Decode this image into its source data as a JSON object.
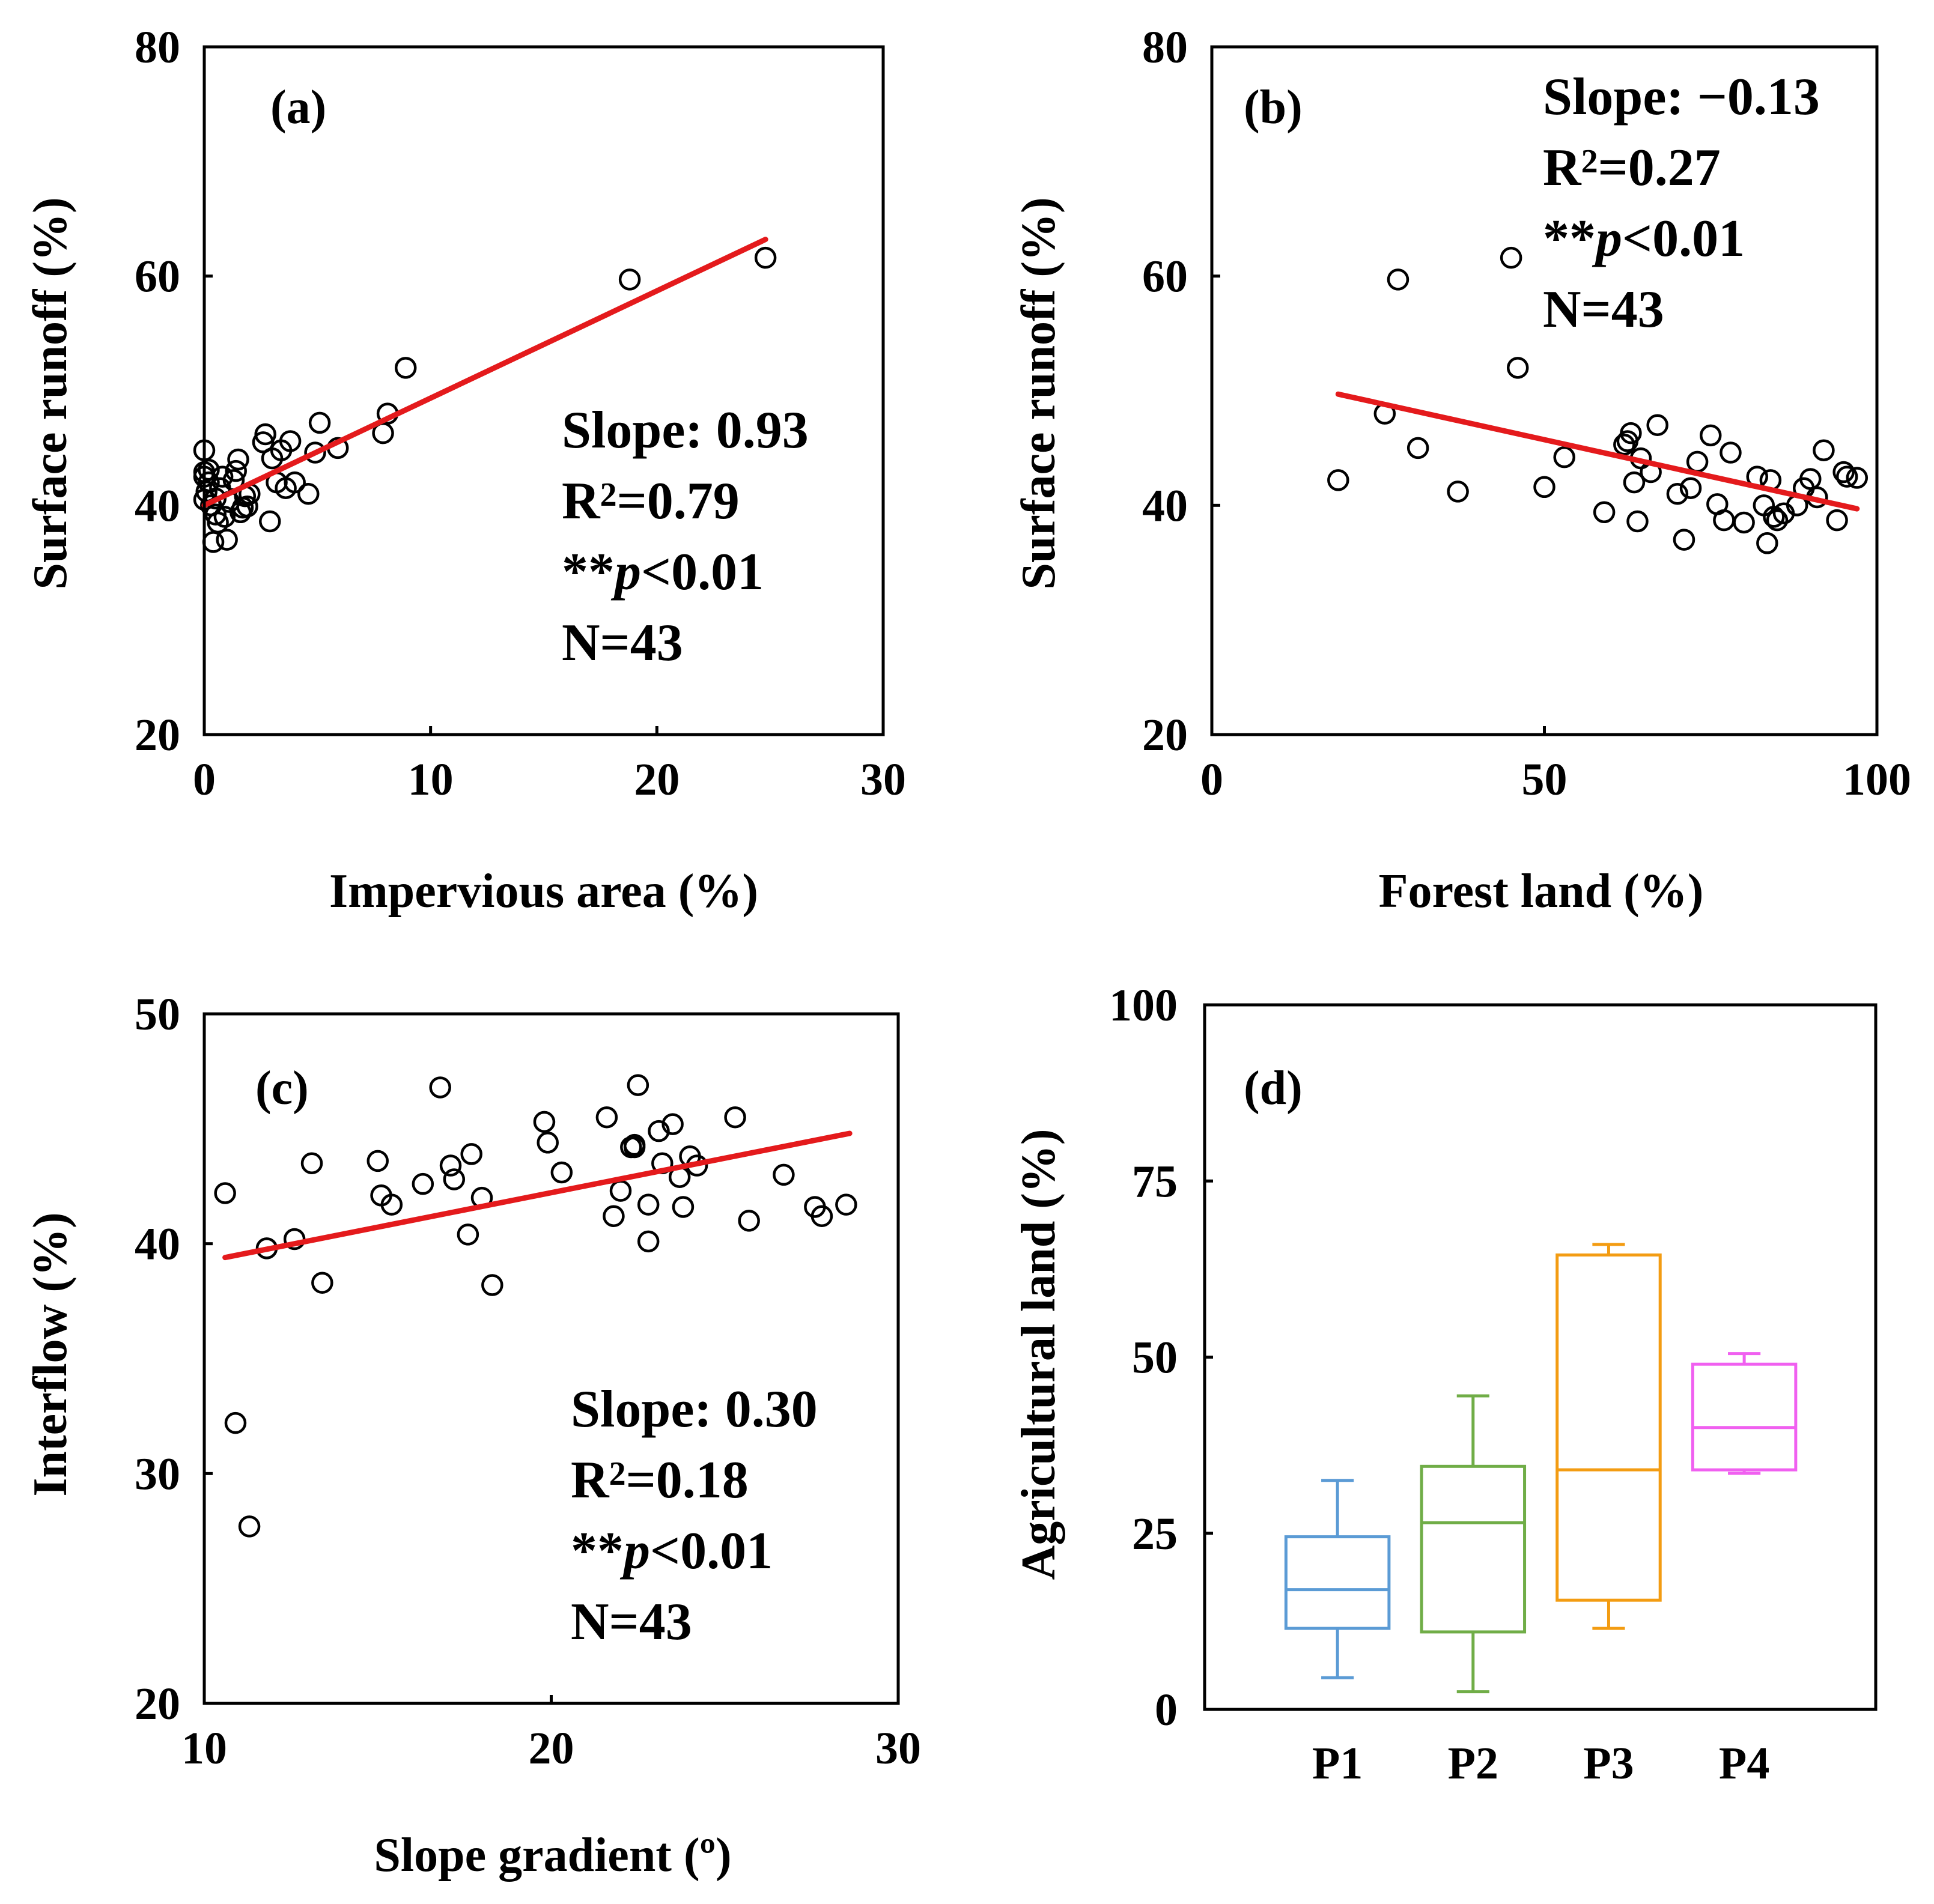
{
  "chart_data": [
    {
      "panel": "a",
      "type": "scatter",
      "panel_label": "(a)",
      "xlabel": "Impervious area  (%)",
      "ylabel": "Surface runoff (%)",
      "xlim": [
        0,
        30
      ],
      "ylim": [
        20,
        80
      ],
      "xticks": [
        0,
        10,
        20,
        30
      ],
      "yticks": [
        20,
        40,
        60,
        80
      ],
      "stats_position": "lower-right",
      "stats": [
        "Slope: 0.93",
        "R²=0.79",
        "**p<0.01",
        "N=43"
      ],
      "fit": {
        "x": [
          0,
          24.8
        ],
        "y": [
          40.0,
          63.2
        ],
        "color": "#e41a1c"
      },
      "points": [
        [
          0,
          44.8
        ],
        [
          0,
          42.5
        ],
        [
          0,
          40.5
        ],
        [
          0,
          42.9
        ],
        [
          0.2,
          42.0
        ],
        [
          0.3,
          40.0
        ],
        [
          0.4,
          36.8
        ],
        [
          0.5,
          39.2
        ],
        [
          0.6,
          38.5
        ],
        [
          0.7,
          41.5
        ],
        [
          0.8,
          42.5
        ],
        [
          0.9,
          39.0
        ],
        [
          1.0,
          37.0
        ],
        [
          1.1,
          40.3
        ],
        [
          1.3,
          42.2
        ],
        [
          1.4,
          43.0
        ],
        [
          1.5,
          44.0
        ],
        [
          1.6,
          39.4
        ],
        [
          1.7,
          39.8
        ],
        [
          1.8,
          40.8
        ],
        [
          1.9,
          39.9
        ],
        [
          2.0,
          41.0
        ],
        [
          2.6,
          45.5
        ],
        [
          2.7,
          46.2
        ],
        [
          2.9,
          38.6
        ],
        [
          3.0,
          44.1
        ],
        [
          3.2,
          42.0
        ],
        [
          3.4,
          44.8
        ],
        [
          3.6,
          41.5
        ],
        [
          3.8,
          45.6
        ],
        [
          4.0,
          42.0
        ],
        [
          4.6,
          41.0
        ],
        [
          4.9,
          44.6
        ],
        [
          5.1,
          47.2
        ],
        [
          5.9,
          45.0
        ],
        [
          7.9,
          46.3
        ],
        [
          8.1,
          48.0
        ],
        [
          8.9,
          52.0
        ],
        [
          18.8,
          59.7
        ],
        [
          24.8,
          61.6
        ],
        [
          0.1,
          41.2
        ],
        [
          0.2,
          43.1
        ],
        [
          0.5,
          40.6
        ]
      ]
    },
    {
      "panel": "b",
      "type": "scatter",
      "panel_label": "(b)",
      "xlabel": "Forest land (%)",
      "ylabel": "Surface runoff (%)",
      "xlim": [
        0,
        100
      ],
      "ylim": [
        20,
        80
      ],
      "xticks": [
        0,
        50,
        100
      ],
      "yticks": [
        20,
        40,
        60,
        80
      ],
      "stats_position": "top-right",
      "stats": [
        "Slope: −0.13",
        "R²=0.27",
        "**p<0.01",
        "N=43"
      ],
      "fit": {
        "x": [
          19,
          97
        ],
        "y": [
          49.7,
          39.7
        ],
        "color": "#e41a1c"
      },
      "points": [
        [
          19,
          42.2
        ],
        [
          26,
          48.0
        ],
        [
          28,
          59.7
        ],
        [
          31,
          45.0
        ],
        [
          37,
          41.2
        ],
        [
          45,
          61.6
        ],
        [
          46,
          52.0
        ],
        [
          50,
          41.6
        ],
        [
          53,
          44.2
        ],
        [
          59,
          39.4
        ],
        [
          62,
          45.3
        ],
        [
          62.5,
          45.6
        ],
        [
          63,
          46.3
        ],
        [
          63.5,
          42.0
        ],
        [
          64,
          38.6
        ],
        [
          64.5,
          44.1
        ],
        [
          66,
          42.9
        ],
        [
          67,
          47.0
        ],
        [
          70,
          41.0
        ],
        [
          71,
          37.0
        ],
        [
          72,
          41.5
        ],
        [
          73,
          43.8
        ],
        [
          75,
          46.1
        ],
        [
          76,
          40.1
        ],
        [
          77,
          38.7
        ],
        [
          78,
          44.6
        ],
        [
          80,
          38.5
        ],
        [
          82,
          42.5
        ],
        [
          83,
          40.0
        ],
        [
          83.5,
          36.7
        ],
        [
          84,
          42.2
        ],
        [
          85,
          38.7
        ],
        [
          86,
          39.3
        ],
        [
          88,
          40.0
        ],
        [
          89,
          41.5
        ],
        [
          90,
          42.3
        ],
        [
          91,
          40.7
        ],
        [
          92,
          44.8
        ],
        [
          94,
          38.7
        ],
        [
          95,
          42.9
        ],
        [
          95.5,
          42.5
        ],
        [
          97,
          42.4
        ],
        [
          84.5,
          39.0
        ]
      ]
    },
    {
      "panel": "c",
      "type": "scatter",
      "panel_label": "(c)",
      "xlabel": "Slope gradient (º)",
      "ylabel": "Interflow (%)",
      "xlim": [
        10,
        30
      ],
      "ylim": [
        20,
        50
      ],
      "xticks": [
        10,
        20,
        30
      ],
      "yticks": [
        20,
        30,
        40,
        50
      ],
      "stats_position": "lower-right",
      "stats": [
        "Slope: 0.30",
        "R²=0.18",
        "**p<0.01",
        "N=43"
      ],
      "fit": {
        "x": [
          10.6,
          28.6
        ],
        "y": [
          39.4,
          44.8
        ],
        "color": "#e41a1c"
      },
      "points": [
        [
          10.6,
          42.2
        ],
        [
          10.9,
          32.2
        ],
        [
          11.3,
          27.7
        ],
        [
          11.8,
          39.8
        ],
        [
          12.6,
          40.2
        ],
        [
          13.1,
          43.5
        ],
        [
          13.4,
          38.3
        ],
        [
          15.0,
          43.6
        ],
        [
          15.1,
          42.1
        ],
        [
          15.4,
          41.7
        ],
        [
          16.3,
          42.6
        ],
        [
          16.8,
          46.8
        ],
        [
          17.1,
          43.4
        ],
        [
          17.2,
          42.8
        ],
        [
          17.6,
          40.4
        ],
        [
          17.7,
          43.9
        ],
        [
          18.0,
          42.0
        ],
        [
          18.3,
          38.2
        ],
        [
          19.8,
          45.3
        ],
        [
          19.9,
          44.4
        ],
        [
          20.3,
          43.1
        ],
        [
          21.6,
          45.5
        ],
        [
          21.8,
          41.2
        ],
        [
          22.0,
          42.3
        ],
        [
          22.3,
          44.2
        ],
        [
          22.4,
          44.2
        ],
        [
          22.5,
          46.9
        ],
        [
          22.8,
          41.7
        ],
        [
          22.8,
          40.1
        ],
        [
          23.1,
          44.9
        ],
        [
          23.2,
          43.5
        ],
        [
          23.5,
          45.2
        ],
        [
          23.7,
          42.9
        ],
        [
          23.8,
          41.6
        ],
        [
          24.0,
          43.8
        ],
        [
          24.2,
          43.4
        ],
        [
          25.3,
          45.5
        ],
        [
          25.7,
          41.0
        ],
        [
          26.7,
          43.0
        ],
        [
          27.6,
          41.6
        ],
        [
          27.8,
          41.2
        ],
        [
          28.5,
          41.7
        ],
        [
          22.4,
          44.3
        ]
      ]
    },
    {
      "panel": "d",
      "type": "box",
      "panel_label": "(d)",
      "xlabel": "",
      "ylabel": "Agricultural land (%)",
      "ylim": [
        0,
        100
      ],
      "yticks": [
        0,
        25,
        50,
        75,
        100
      ],
      "categories": [
        "P1",
        "P2",
        "P3",
        "P4"
      ],
      "boxes": [
        {
          "name": "P1",
          "color": "#5b9bd5",
          "min": 4.5,
          "q1": 11.5,
          "median": 17.0,
          "q3": 24.5,
          "max": 32.5
        },
        {
          "name": "P2",
          "color": "#70ad47",
          "min": 2.5,
          "q1": 11.0,
          "median": 26.5,
          "q3": 34.5,
          "max": 44.5
        },
        {
          "name": "P3",
          "color": "#f39c12",
          "min": 11.5,
          "q1": 15.5,
          "median": 34.0,
          "q3": 64.5,
          "max": 66.0
        },
        {
          "name": "P4",
          "color": "#f060f0",
          "min": 33.5,
          "q1": 34.0,
          "median": 40.0,
          "q3": 49.0,
          "max": 50.5
        }
      ]
    }
  ]
}
